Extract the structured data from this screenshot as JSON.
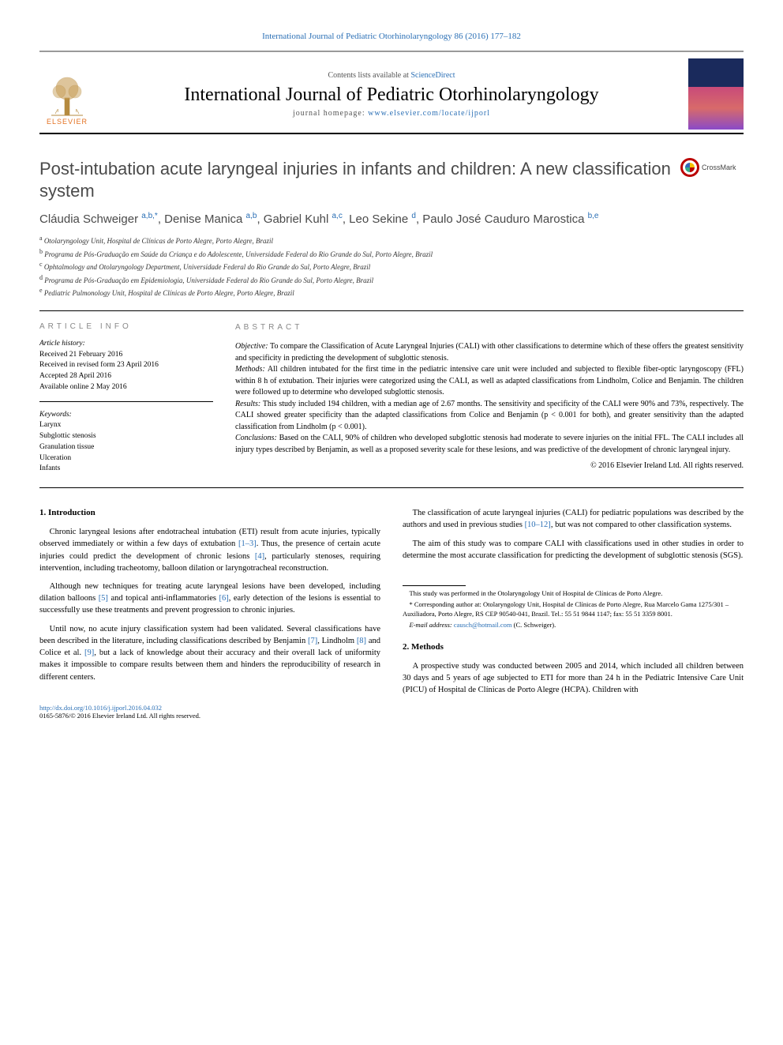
{
  "header": {
    "citation": "International Journal of Pediatric Otorhinolaryngology 86 (2016) 177–182",
    "contents_prefix": "Contents lists available at ",
    "contents_link": "ScienceDirect",
    "journal_title": "International Journal of Pediatric Otorhinolaryngology",
    "homepage_prefix": "journal homepage: ",
    "homepage_url": "www.elsevier.com/locate/ijporl",
    "publisher_logo_text": "ELSEVIER"
  },
  "crossmark_label": "CrossMark",
  "title": "Post-intubation acute laryngeal injuries in infants and children: A new classification system",
  "authors_html": "Cláudia Schweiger <sup>a,b,*</sup>, Denise Manica <sup>a,b</sup>, Gabriel Kuhl <sup>a,c</sup>, Leo Sekine <sup>d</sup>, Paulo José Cauduro Marostica <sup>b,e</sup>",
  "affiliations": [
    {
      "sup": "a",
      "text": "Otolaryngology Unit, Hospital de Clínicas de Porto Alegre, Porto Alegre, Brazil"
    },
    {
      "sup": "b",
      "text": "Programa de Pós-Graduação em Saúde da Criança e do Adolescente, Universidade Federal do Rio Grande do Sul, Porto Alegre, Brazil"
    },
    {
      "sup": "c",
      "text": "Ophtalmology and Otolaryngology Department, Universidade Federal do Rio Grande do Sul, Porto Alegre, Brazil"
    },
    {
      "sup": "d",
      "text": "Programa de Pós-Graduação em Epidemiologia, Universidade Federal do Rio Grande do Sul, Porto Alegre, Brazil"
    },
    {
      "sup": "e",
      "text": "Pediatric Pulmonology Unit, Hospital de Clínicas de Porto Alegre, Porto Alegre, Brazil"
    }
  ],
  "info": {
    "label": "ARTICLE INFO",
    "history_label": "Article history:",
    "history": [
      "Received 21 February 2016",
      "Received in revised form 23 April 2016",
      "Accepted 28 April 2016",
      "Available online 2 May 2016"
    ],
    "keywords_label": "Keywords:",
    "keywords": [
      "Larynx",
      "Subglottic stenosis",
      "Granulation tissue",
      "Ulceration",
      "Infants"
    ]
  },
  "abstract": {
    "label": "ABSTRACT",
    "objective_label": "Objective:",
    "objective": "To compare the Classification of Acute Laryngeal Injuries (CALI) with other classifications to determine which of these offers the greatest sensitivity and specificity in predicting the development of subglottic stenosis.",
    "methods_label": "Methods:",
    "methods": "All children intubated for the first time in the pediatric intensive care unit were included and subjected to flexible fiber-optic laryngoscopy (FFL) within 8 h of extubation. Their injuries were categorized using the CALI, as well as adapted classifications from Lindholm, Colice and Benjamin. The children were followed up to determine who developed subglottic stenosis.",
    "results_label": "Results:",
    "results": "This study included 194 children, with a median age of 2.67 months. The sensitivity and specificity of the CALI were 90% and 73%, respectively. The CALI showed greater specificity than the adapted classifications from Colice and Benjamin (p < 0.001 for both), and greater sensitivity than the adapted classification from Lindholm (p < 0.001).",
    "conclusions_label": "Conclusions:",
    "conclusions": "Based on the CALI, 90% of children who developed subglottic stenosis had moderate to severe injuries on the initial FFL. The CALI includes all injury types described by Benjamin, as well as a proposed severity scale for these lesions, and was predictive of the development of chronic laryngeal injury.",
    "copyright": "© 2016 Elsevier Ireland Ltd. All rights reserved."
  },
  "sections": {
    "intro_heading": "1. Introduction",
    "intro_paras": [
      "Chronic laryngeal lesions after endotracheal intubation (ETI) result from acute injuries, typically observed immediately or within a few days of extubation <span class=\"ref\">[1–3]</span>. Thus, the presence of certain acute injuries could predict the development of chronic lesions <span class=\"ref\">[4]</span>, particularly stenoses, requiring intervention, including tracheotomy, balloon dilation or laryngotracheal reconstruction.",
      "Although new techniques for treating acute laryngeal lesions have been developed, including dilation balloons <span class=\"ref\">[5]</span> and topical anti-inflammatories <span class=\"ref\">[6]</span>, early detection of the lesions is essential to successfully use these treatments and prevent progression to chronic injuries.",
      "Until now, no acute injury classification system had been validated. Several classifications have been described in the literature, including classifications described by Benjamin <span class=\"ref\">[7]</span>, Lindholm <span class=\"ref\">[8]</span> and Colice et al. <span class=\"ref\">[9]</span>, but a lack of knowledge about their accuracy and their overall lack of uniformity makes it impossible to compare results between them and hinders the reproducibility of research in different centers.",
      "The classification of acute laryngeal injuries (CALI) for pediatric populations was described by the authors and used in previous studies <span class=\"ref\">[10–12]</span>, but was not compared to other classification systems.",
      "The aim of this study was to compare CALI with classifications used in other studies in order to determine the most accurate classification for predicting the development of subglottic stenosis (SGS)."
    ],
    "methods_heading": "2. Methods",
    "methods_paras": [
      "A prospective study was conducted between 2005 and 2014, which included all children between 30 days and 5 years of age subjected to ETI for more than 24 h in the Pediatric Intensive Care Unit (PICU) of Hospital de Clínicas de Porto Alegre (HCPA). Children with"
    ]
  },
  "footnotes": {
    "note1": "This study was performed in the Otolaryngology Unit of Hospital de Clínicas de Porto Alegre.",
    "corr_label": "* Corresponding author at:",
    "corr_text": "Otolaryngology Unit, Hospital de Clínicas de Porto Alegre, Rua Marcelo Gama 1275/301 – Auxiliadora, Porto Alegre, RS CEP 90540-041, Brazil. Tel.: 55 51 9844 1147; fax: 55 51 3359 8001.",
    "email_label": "E-mail address:",
    "email": "causch@hotmail.com",
    "email_suffix": "(C. Schweiger)."
  },
  "doi": "http://dx.doi.org/10.1016/j.ijporl.2016.04.032",
  "issn_line": "0165-5876/© 2016 Elsevier Ireland Ltd. All rights reserved.",
  "colors": {
    "link": "#2a6fb5",
    "text": "#000000",
    "muted": "#888888",
    "elsevier_orange": "#e37222"
  }
}
